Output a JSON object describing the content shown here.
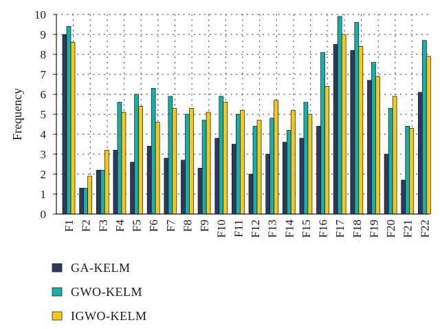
{
  "chart_data": {
    "type": "bar",
    "title": "",
    "xlabel": "",
    "ylabel": "Frequency",
    "ylim": [
      0,
      10
    ],
    "yticks": [
      0,
      1,
      2,
      3,
      4,
      5,
      6,
      7,
      8,
      9,
      10
    ],
    "grid": "dotted",
    "legend_position": "bottom-left",
    "categories": [
      "F1",
      "F2",
      "F3",
      "F4",
      "F5",
      "F6",
      "F7",
      "F8",
      "F9",
      "F10",
      "F11",
      "F12",
      "F13",
      "F14",
      "F15",
      "F16",
      "F17",
      "F18",
      "F19",
      "F20",
      "F21",
      "F22"
    ],
    "series": [
      {
        "name": "GA-KELM",
        "color": "#2e3a5c",
        "values": [
          9.0,
          1.3,
          2.2,
          3.2,
          2.6,
          3.4,
          2.8,
          2.7,
          2.3,
          3.8,
          3.5,
          2.0,
          3.0,
          3.6,
          3.8,
          4.4,
          8.5,
          8.2,
          6.7,
          3.0,
          1.7,
          6.1
        ]
      },
      {
        "name": "GWO-KELM",
        "color": "#1aaeaa",
        "values": [
          9.4,
          1.3,
          2.2,
          5.6,
          6.0,
          6.3,
          5.9,
          5.0,
          4.7,
          5.9,
          5.0,
          4.4,
          4.8,
          4.2,
          5.6,
          8.1,
          9.9,
          9.6,
          7.6,
          5.3,
          4.4,
          8.7
        ]
      },
      {
        "name": "IGWO-KELM",
        "color": "#f2c81c",
        "values": [
          8.6,
          1.9,
          3.2,
          5.1,
          5.4,
          4.6,
          5.3,
          5.3,
          5.1,
          5.6,
          5.2,
          4.7,
          5.7,
          5.2,
          5.0,
          6.4,
          9.0,
          8.4,
          6.9,
          5.9,
          4.3,
          7.9
        ]
      }
    ]
  }
}
